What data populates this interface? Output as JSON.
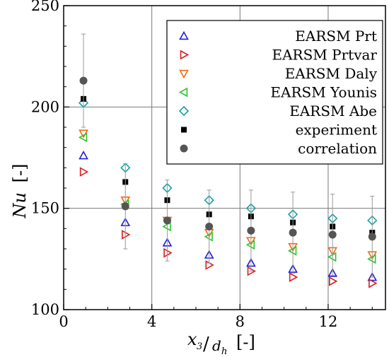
{
  "chart_data": {
    "type": "scatter",
    "xlabel_main": "x",
    "xlabel_sub_num": "3",
    "xlabel_den": "d",
    "xlabel_sub_den": "h",
    "xlabel_unit": "[-]",
    "ylabel_main": "Nu",
    "ylabel_unit": "[-]",
    "xlim": [
      0,
      14.6
    ],
    "ylim": [
      100,
      250
    ],
    "xticks": [
      0,
      4,
      8,
      12
    ],
    "yticks": [
      100,
      150,
      200,
      250
    ],
    "grid": true,
    "legend_position": "top-right",
    "series": [
      {
        "name": "EARSM Prt",
        "marker": "triangle-up",
        "color": "#1f1fd6",
        "x": [
          0.9,
          2.8,
          4.7,
          6.6,
          8.5,
          10.4,
          12.2,
          14.0
        ],
        "y": [
          176,
          143,
          133,
          127,
          123,
          120,
          118,
          116
        ]
      },
      {
        "name": "EARSM Prtvar",
        "marker": "triangle-right",
        "color": "#d62020",
        "x": [
          0.9,
          2.8,
          4.7,
          6.6,
          8.5,
          10.4,
          12.2,
          14.0
        ],
        "y": [
          168,
          137,
          128,
          122,
          119,
          116,
          114,
          113
        ]
      },
      {
        "name": "EARSM Daly",
        "marker": "triangle-down",
        "color": "#f26b0f",
        "x": [
          0.9,
          2.8,
          4.7,
          6.6,
          8.5,
          10.4,
          12.2,
          14.0
        ],
        "y": [
          187,
          154,
          144,
          138,
          134,
          131,
          129,
          127
        ]
      },
      {
        "name": "EARSM Younis",
        "marker": "triangle-left",
        "color": "#2ec42e",
        "x": [
          0.9,
          2.8,
          4.7,
          6.6,
          8.5,
          10.4,
          12.2,
          14.0
        ],
        "y": [
          185,
          152,
          141,
          136,
          132,
          129,
          126,
          125
        ]
      },
      {
        "name": "EARSM Abe",
        "marker": "diamond",
        "color": "#1aa3a3",
        "x": [
          0.9,
          2.8,
          4.7,
          6.6,
          8.5,
          10.4,
          12.2,
          14.0
        ],
        "y": [
          202,
          170,
          160,
          154,
          150,
          147,
          145,
          144
        ]
      },
      {
        "name": "experiment",
        "marker": "square",
        "color": "#000000",
        "x": [
          0.9,
          2.8,
          4.7,
          6.6,
          8.5,
          10.4,
          12.2,
          14.0
        ],
        "y": [
          204,
          163,
          154,
          147,
          146,
          143,
          141,
          138
        ]
      },
      {
        "name": "correlation",
        "marker": "circle",
        "color": "#555555",
        "x": [
          0.9,
          2.8,
          4.7,
          6.6,
          8.5,
          10.4,
          12.2,
          14.0
        ],
        "y": [
          213,
          151,
          144,
          141,
          139,
          138,
          137,
          136
        ],
        "yerr": [
          23,
          21,
          20,
          18,
          20,
          20,
          20,
          20
        ]
      }
    ]
  }
}
